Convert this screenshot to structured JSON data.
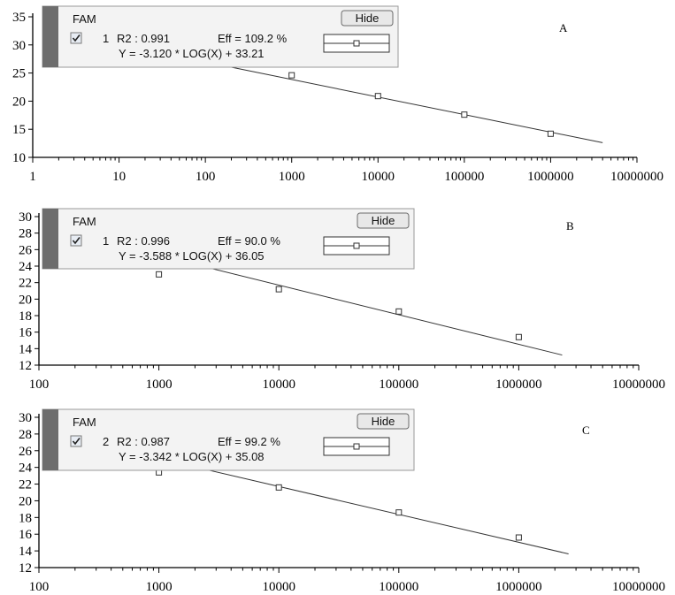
{
  "chart_data": [
    {
      "type": "scatter",
      "panel_label": "A",
      "x_scale": "log",
      "xlim": [
        1,
        10000000
      ],
      "ylim": [
        10,
        35
      ],
      "x_tick_labels": [
        "1",
        "10",
        "100",
        "1000",
        "10000",
        "100000",
        "1000000",
        "10000000"
      ],
      "y_tick_labels": [
        "10",
        "15",
        "20",
        "25",
        "30",
        "35"
      ],
      "points": [
        {
          "x": 1000,
          "y": 24.6
        },
        {
          "x": 10000,
          "y": 20.9
        },
        {
          "x": 100000,
          "y": 17.6
        },
        {
          "x": 1000000,
          "y": 14.2
        }
      ],
      "fit_x_range": [
        200,
        4000000
      ],
      "legend": {
        "title": "FAM",
        "button": "Hide",
        "index": "1",
        "r2": "R2 : 0.991",
        "eff": "Eff = 109.2 %",
        "equation": "Y = -3.120 * LOG(X) + 33.21",
        "slope": -3.12,
        "intercept": 33.21
      }
    },
    {
      "type": "scatter",
      "panel_label": "B",
      "x_scale": "log",
      "xlim": [
        100,
        10000000
      ],
      "ylim": [
        12,
        30
      ],
      "x_tick_labels": [
        "100",
        "1000",
        "10000",
        "100000",
        "1000000",
        "10000000"
      ],
      "y_tick_labels": [
        "12",
        "14",
        "16",
        "18",
        "20",
        "22",
        "24",
        "26",
        "28",
        "30"
      ],
      "points": [
        {
          "x": 1000,
          "y": 23.0
        },
        {
          "x": 10000,
          "y": 21.2
        },
        {
          "x": 100000,
          "y": 18.5
        },
        {
          "x": 1000000,
          "y": 15.4
        }
      ],
      "fit_x_range": [
        600,
        2300000
      ],
      "legend": {
        "title": "FAM",
        "button": "Hide",
        "index": "1",
        "r2": "R2 : 0.996",
        "eff": "Eff = 90.0 %",
        "equation": "Y = -3.588 * LOG(X) + 36.05",
        "slope": -3.588,
        "intercept": 36.05
      }
    },
    {
      "type": "scatter",
      "panel_label": "C",
      "x_scale": "log",
      "xlim": [
        100,
        10000000
      ],
      "ylim": [
        12,
        30
      ],
      "x_tick_labels": [
        "100",
        "1000",
        "10000",
        "100000",
        "1000000",
        "10000000"
      ],
      "y_tick_labels": [
        "12",
        "14",
        "16",
        "18",
        "20",
        "22",
        "24",
        "26",
        "28",
        "30"
      ],
      "points": [
        {
          "x": 1000,
          "y": 23.4
        },
        {
          "x": 10000,
          "y": 21.6
        },
        {
          "x": 100000,
          "y": 18.6
        },
        {
          "x": 1000000,
          "y": 15.6
        }
      ],
      "fit_x_range": [
        700,
        2600000
      ],
      "legend": {
        "title": "FAM",
        "button": "Hide",
        "index": "2",
        "r2": "R2 : 0.987",
        "eff": "Eff = 99.2 %",
        "equation": "Y = -3.342 * LOG(X) + 35.08",
        "slope": -3.342,
        "intercept": 35.08
      }
    }
  ]
}
